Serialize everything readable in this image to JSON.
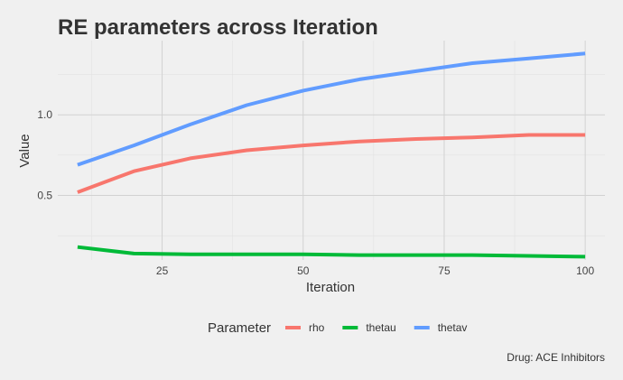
{
  "chart_data": {
    "type": "line",
    "title": "RE parameters across Iteration",
    "xlabel": "Iteration",
    "ylabel": "Value",
    "caption": "Drug: ACE Inhibitors",
    "legend_title": "Parameter",
    "legend_position": "bottom",
    "grid": true,
    "xlim": [
      6.5,
      103.5
    ],
    "ylim": [
      0.1,
      1.46
    ],
    "xticks": [
      25,
      50,
      75,
      100
    ],
    "yticks": [
      0.5,
      1.0
    ],
    "xtick_labels": [
      "25",
      "50",
      "75",
      "100"
    ],
    "ytick_labels": [
      "0.5",
      "1.0"
    ],
    "x": [
      10,
      20,
      30,
      40,
      50,
      60,
      70,
      80,
      90,
      100
    ],
    "series": [
      {
        "name": "rho",
        "color": "#f8766d",
        "values": [
          0.52,
          0.65,
          0.73,
          0.78,
          0.81,
          0.835,
          0.85,
          0.86,
          0.875,
          0.875
        ]
      },
      {
        "name": "thetau",
        "color": "#00ba38",
        "values": [
          0.18,
          0.14,
          0.135,
          0.135,
          0.135,
          0.13,
          0.13,
          0.13,
          0.125,
          0.12
        ]
      },
      {
        "name": "thetav",
        "color": "#619cff",
        "values": [
          0.69,
          0.81,
          0.94,
          1.06,
          1.15,
          1.22,
          1.27,
          1.32,
          1.35,
          1.38
        ]
      }
    ]
  }
}
